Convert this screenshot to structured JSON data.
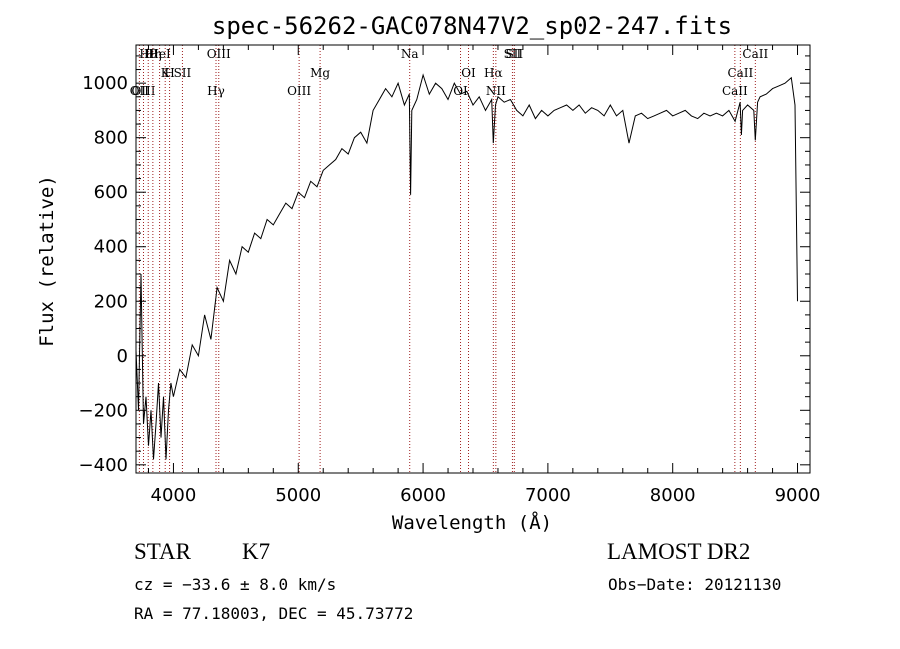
{
  "chart_data": {
    "type": "line",
    "title": "spec-56262-GAC078N47V2_sp02-247.fits",
    "xlabel": "Wavelength (Å)",
    "ylabel": "Flux (relative)",
    "xlim": [
      3700,
      9100
    ],
    "ylim": [
      -430,
      1140
    ],
    "xticks": [
      4000,
      5000,
      6000,
      7000,
      8000,
      9000
    ],
    "yticks": [
      -400,
      -200,
      0,
      200,
      400,
      600,
      800,
      1000
    ],
    "series": [
      {
        "x": [
          3700,
          3720,
          3740,
          3760,
          3780,
          3800,
          3820,
          3840,
          3860,
          3880,
          3900,
          3920,
          3940,
          3960,
          3980,
          4000,
          4050,
          4100,
          4150,
          4200,
          4250,
          4300,
          4350,
          4400,
          4450,
          4500,
          4550,
          4600,
          4650,
          4700,
          4750,
          4800,
          4850,
          4900,
          4950,
          5000,
          5050,
          5100,
          5150,
          5200,
          5250,
          5300,
          5350,
          5400,
          5450,
          5500,
          5550,
          5600,
          5650,
          5700,
          5750,
          5800,
          5850,
          5890,
          5900,
          5910,
          5950,
          6000,
          6050,
          6100,
          6150,
          6200,
          6250,
          6300,
          6350,
          6400,
          6450,
          6500,
          6550,
          6563,
          6580,
          6600,
          6650,
          6700,
          6750,
          6800,
          6850,
          6900,
          6950,
          7000,
          7050,
          7100,
          7150,
          7200,
          7250,
          7300,
          7350,
          7400,
          7450,
          7500,
          7550,
          7600,
          7650,
          7700,
          7750,
          7800,
          7850,
          7900,
          7950,
          8000,
          8050,
          8100,
          8150,
          8200,
          8250,
          8300,
          8350,
          8400,
          8450,
          8500,
          8540,
          8550,
          8560,
          8600,
          8650,
          8662,
          8680,
          8700,
          8750,
          8800,
          8850,
          8900,
          8950,
          8980,
          9000
        ],
        "y": [
          20,
          -200,
          300,
          -250,
          -150,
          -330,
          -200,
          -380,
          -250,
          -100,
          -300,
          -150,
          -380,
          -200,
          -100,
          -150,
          -50,
          -80,
          40,
          0,
          150,
          60,
          250,
          200,
          350,
          300,
          400,
          380,
          450,
          430,
          500,
          480,
          520,
          560,
          540,
          600,
          580,
          640,
          620,
          680,
          700,
          720,
          760,
          740,
          800,
          820,
          780,
          900,
          940,
          980,
          950,
          1000,
          920,
          960,
          590,
          900,
          940,
          1030,
          960,
          1000,
          980,
          940,
          1000,
          960,
          970,
          920,
          950,
          900,
          940,
          780,
          920,
          950,
          930,
          940,
          900,
          880,
          920,
          870,
          900,
          880,
          900,
          910,
          920,
          900,
          920,
          890,
          910,
          900,
          880,
          920,
          880,
          900,
          780,
          880,
          890,
          870,
          880,
          890,
          900,
          880,
          890,
          900,
          880,
          870,
          890,
          880,
          890,
          880,
          900,
          860,
          930,
          810,
          900,
          920,
          900,
          790,
          930,
          950,
          960,
          980,
          990,
          1000,
          1020,
          920,
          200
        ]
      }
    ],
    "line_markers": [
      {
        "label": "Hθ",
        "x": 3798
      },
      {
        "label": "K",
        "x": 3934
      },
      {
        "label": "OII",
        "x": 3727
      },
      {
        "label": "HeI",
        "x": 3889
      },
      {
        "label": "SII",
        "x": 4072
      },
      {
        "label": "OIII",
        "x": 3760
      },
      {
        "label": "Hη",
        "x": 3835
      },
      {
        "label": "H",
        "x": 3969
      },
      {
        "label": "Hγ",
        "x": 4341
      },
      {
        "label": "OIII",
        "x": 4363
      },
      {
        "label": "Mg",
        "x": 5175
      },
      {
        "label": "OIII",
        "x": 5007
      },
      {
        "label": "Na",
        "x": 5893
      },
      {
        "label": "OI",
        "x": 6364
      },
      {
        "label": "OI",
        "x": 6300
      },
      {
        "label": "SII",
        "x": 6716
      },
      {
        "label": "Hα",
        "x": 6563
      },
      {
        "label": "NII",
        "x": 6583
      },
      {
        "label": "SII",
        "x": 6731
      },
      {
        "label": "CaII",
        "x": 8542
      },
      {
        "label": "CaII",
        "x": 8498
      },
      {
        "label": "CaII",
        "x": 8662
      }
    ]
  },
  "info": {
    "class": "STAR",
    "subclass": "K7",
    "survey": "LAMOST DR2",
    "cz": "cz = −33.6 ± 8.0 km/s",
    "obs_date": "Obs−Date: 20121130",
    "radec": "RA =  77.18003, DEC =  45.73772"
  }
}
